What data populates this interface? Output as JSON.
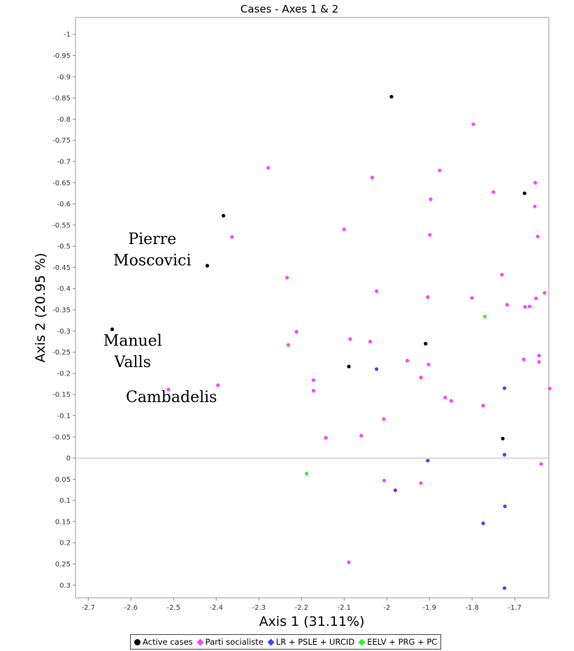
{
  "chart_data": {
    "type": "scatter",
    "title": "Cases - Axes 1 & 2",
    "xlabel": "Axis 1 (31.11%)",
    "ylabel": "Axis 2 (20.95 %)",
    "xlim": [
      -2.73,
      -1.62
    ],
    "ylim": [
      -1.04,
      0.33
    ],
    "y_inverted": true,
    "x_ticks": [
      "-2.7",
      "-2.6",
      "-2.5",
      "-2.4",
      "-2.3",
      "-2.2",
      "-2.1",
      "-2",
      "-1.9",
      "-1.8",
      "-1.7"
    ],
    "x_tick_values": [
      -2.7,
      -2.6,
      -2.5,
      -2.4,
      -2.3,
      -2.2,
      -2.1,
      -2.0,
      -1.9,
      -1.8,
      -1.7
    ],
    "y_ticks": [
      "-1",
      "-0.95",
      "-0.9",
      "-0.85",
      "-0.8",
      "-0.75",
      "-0.7",
      "-0.65",
      "-0.6",
      "-0.55",
      "-0.5",
      "-0.45",
      "-0.4",
      "-0.35",
      "-0.3",
      "-0.25",
      "-0.2",
      "-0.15",
      "-0.1",
      "-0.05",
      "0",
      "0.05",
      "0.1",
      "0.15",
      "0.2",
      "0.25",
      "0.3"
    ],
    "y_tick_values": [
      -1,
      -0.95,
      -0.9,
      -0.85,
      -0.8,
      -0.75,
      -0.7,
      -0.65,
      -0.6,
      -0.55,
      -0.5,
      -0.45,
      -0.4,
      -0.35,
      -0.3,
      -0.25,
      -0.2,
      -0.15,
      -0.1,
      -0.05,
      0,
      0.05,
      0.1,
      0.15,
      0.2,
      0.25,
      0.3
    ],
    "zero_line": 0,
    "grid": false,
    "legend_position": "bottom-center",
    "series": [
      {
        "name": "Active cases",
        "color": "#000000",
        "marker": "circle",
        "points": [
          [
            -2.644,
            -0.304
          ],
          [
            -2.421,
            -0.454
          ],
          [
            -2.383,
            -0.572
          ],
          [
            -1.989,
            -0.853
          ],
          [
            -1.677,
            -0.625
          ],
          [
            -1.909,
            -0.27
          ],
          [
            -2.089,
            -0.216
          ],
          [
            -1.728,
            -0.046
          ]
        ]
      },
      {
        "name": "Parti socialiste",
        "color": "#ff44ff",
        "marker": "circle",
        "points": [
          [
            -2.278,
            -0.685
          ],
          [
            -2.034,
            -0.662
          ],
          [
            -1.797,
            -0.788
          ],
          [
            -1.876,
            -0.679
          ],
          [
            -1.75,
            -0.628
          ],
          [
            -1.897,
            -0.611
          ],
          [
            -1.652,
            -0.65
          ],
          [
            -1.653,
            -0.594
          ],
          [
            -2.1,
            -0.54
          ],
          [
            -2.363,
            -0.522
          ],
          [
            -1.899,
            -0.527
          ],
          [
            -1.646,
            -0.523
          ],
          [
            -2.234,
            -0.426
          ],
          [
            -2.024,
            -0.394
          ],
          [
            -1.73,
            -0.433
          ],
          [
            -1.904,
            -0.38
          ],
          [
            -1.8,
            -0.378
          ],
          [
            -1.718,
            -0.362
          ],
          [
            -1.676,
            -0.357
          ],
          [
            -1.665,
            -0.358
          ],
          [
            -1.65,
            -0.377
          ],
          [
            -1.63,
            -0.39
          ],
          [
            -2.212,
            -0.298
          ],
          [
            -2.231,
            -0.267
          ],
          [
            -2.086,
            -0.281
          ],
          [
            -2.039,
            -0.275
          ],
          [
            -1.952,
            -0.23
          ],
          [
            -1.902,
            -0.221
          ],
          [
            -1.679,
            -0.233
          ],
          [
            -1.643,
            -0.242
          ],
          [
            -1.643,
            -0.227
          ],
          [
            -2.172,
            -0.184
          ],
          [
            -2.172,
            -0.159
          ],
          [
            -1.92,
            -0.19
          ],
          [
            -2.512,
            -0.162
          ],
          [
            -2.396,
            -0.172
          ],
          [
            -1.863,
            -0.143
          ],
          [
            -1.849,
            -0.135
          ],
          [
            -1.774,
            -0.124
          ],
          [
            -1.618,
            -0.164
          ],
          [
            -2.007,
            -0.092
          ],
          [
            -2.143,
            -0.048
          ],
          [
            -2.06,
            -0.053
          ],
          [
            -2.006,
            0.053
          ],
          [
            -1.92,
            0.059
          ],
          [
            -1.638,
            0.014
          ],
          [
            -2.089,
            0.246
          ]
        ]
      },
      {
        "name": "LR + PSLE + URCID",
        "color": "#4444ff",
        "marker": "circle",
        "points": [
          [
            -2.024,
            -0.21
          ],
          [
            -1.724,
            -0.165
          ],
          [
            -1.724,
            -0.008
          ],
          [
            -1.904,
            0.006
          ],
          [
            -1.98,
            0.076
          ],
          [
            -1.723,
            0.114
          ],
          [
            -1.774,
            0.154
          ],
          [
            -1.724,
            0.307
          ]
        ]
      },
      {
        "name": "EELV + PRG + PC",
        "color": "#33ee33",
        "marker": "circle",
        "points": [
          [
            -1.77,
            -0.334
          ],
          [
            -2.188,
            0.037
          ]
        ]
      }
    ],
    "annotations": [
      {
        "text": "Pierre",
        "x": -2.55,
        "y": -0.505
      },
      {
        "text": "Moscovici",
        "x": -2.55,
        "y": -0.455
      },
      {
        "text": "Manuel",
        "x": -2.596,
        "y": -0.265
      },
      {
        "text": "Valls",
        "x": -2.596,
        "y": -0.215
      },
      {
        "text": "Cambadelis",
        "x": -2.505,
        "y": -0.132
      }
    ]
  }
}
